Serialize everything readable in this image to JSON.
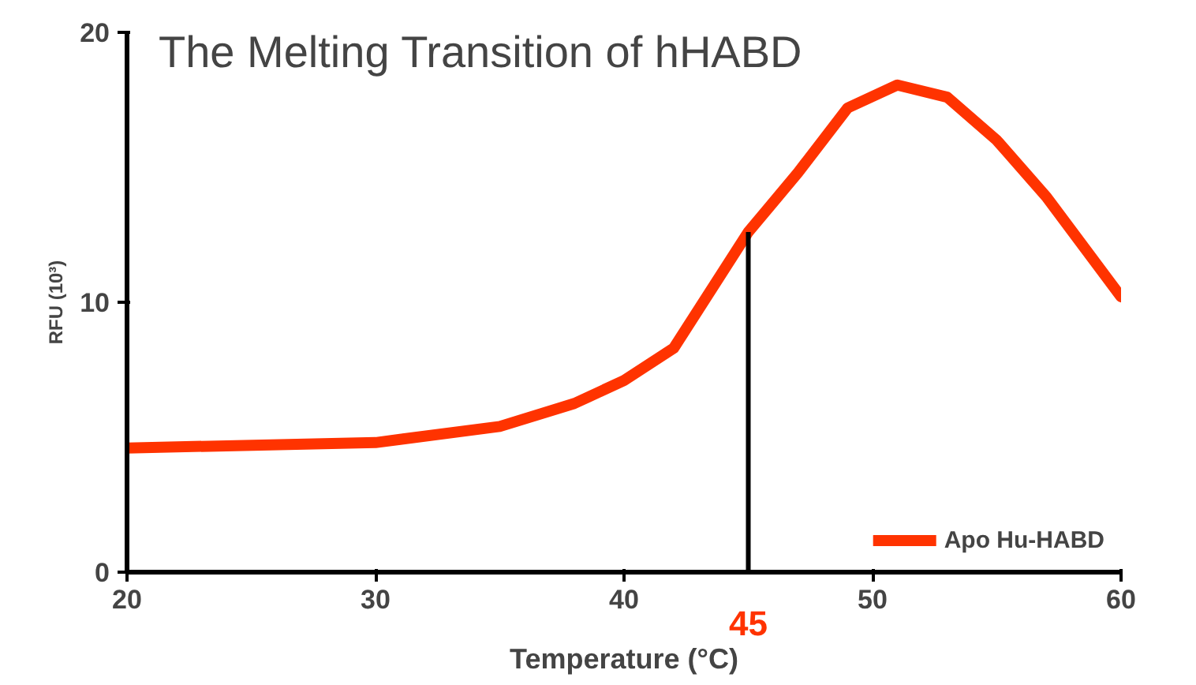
{
  "chart_data": {
    "type": "line",
    "title": "The Melting Transition of hHABD",
    "xlabel": "Temperature (°C)",
    "ylabel": "RFU (10³)",
    "xlim": [
      20,
      60
    ],
    "ylim": [
      0,
      20
    ],
    "xticks": [
      20,
      30,
      40,
      50,
      60
    ],
    "yticks": [
      0,
      10,
      20
    ],
    "grid": false,
    "legend": "bottom right",
    "series": [
      {
        "name": "Apo Hu-HABD",
        "color": "#ff3300",
        "x": [
          20,
          30,
          35,
          38,
          40,
          42,
          45,
          47,
          49,
          51,
          53,
          55,
          57,
          60
        ],
        "values": [
          4.6,
          4.8,
          5.4,
          6.25,
          7.1,
          8.3,
          12.6,
          14.8,
          17.2,
          18.05,
          17.6,
          16.0,
          13.9,
          10.2
        ]
      }
    ],
    "ref_lines": [
      {
        "axis": "x",
        "value": 45,
        "label": "45",
        "color": "#000000"
      }
    ]
  }
}
